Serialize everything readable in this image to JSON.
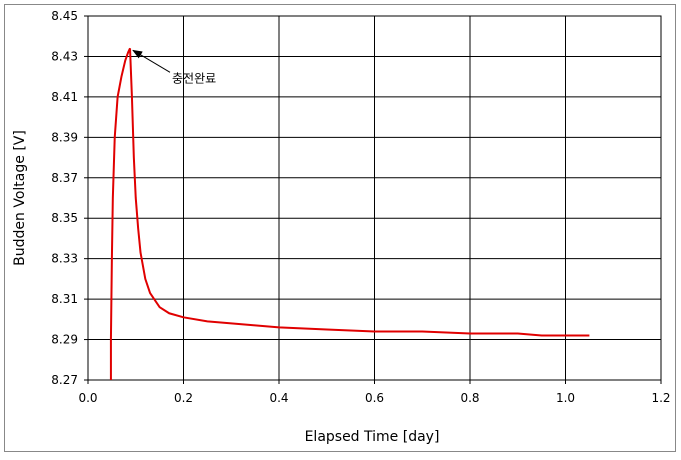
{
  "chart_data": {
    "type": "line",
    "x_label": "Elapsed Time [day]",
    "y_label": "Budden Voltage [V]",
    "annotation": "충전완료",
    "xlim": [
      0,
      1.2
    ],
    "xticks": [
      {
        "value": 0,
        "label": "0.0"
      },
      0.2,
      0.4,
      0.6,
      0.8,
      {
        "value": 1,
        "label": "1.0"
      },
      1.2
    ],
    "ylim": [
      8.27,
      8.45
    ],
    "yticks": [
      8.27,
      8.29,
      8.31,
      8.33,
      8.35,
      8.37,
      8.39,
      8.41,
      8.43,
      8.45
    ],
    "grid": true,
    "series": [
      {
        "color": "#e00000",
        "x": [
          0.048,
          0.048,
          0.05,
          0.052,
          0.056,
          0.062,
          0.07,
          0.078,
          0.084,
          0.088,
          0.092,
          0.096,
          0.1,
          0.105,
          0.11,
          0.12,
          0.13,
          0.15,
          0.17,
          0.2,
          0.25,
          0.3,
          0.35,
          0.4,
          0.5,
          0.6,
          0.7,
          0.8,
          0.9,
          0.95,
          1.0,
          1.05
        ],
        "values": [
          8.27,
          8.29,
          8.33,
          8.36,
          8.39,
          8.41,
          8.42,
          8.428,
          8.432,
          8.434,
          8.41,
          8.38,
          8.36,
          8.345,
          8.333,
          8.32,
          8.313,
          8.306,
          8.303,
          8.301,
          8.299,
          8.298,
          8.297,
          8.296,
          8.295,
          8.294,
          8.294,
          8.293,
          8.293,
          8.292,
          8.292,
          8.292
        ]
      }
    ]
  }
}
